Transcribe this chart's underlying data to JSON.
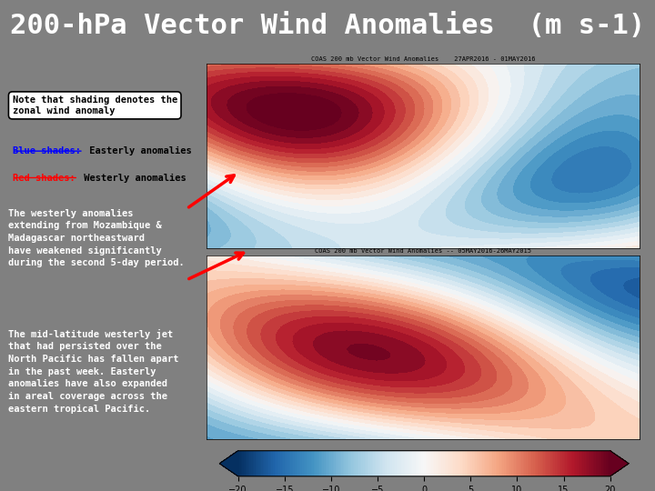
{
  "title": "200-hPa Vector Wind Anomalies  (m s-1)",
  "title_fontsize": 22,
  "title_color": "white",
  "bg_color": "#808080",
  "header_bg": "#707070",
  "note_box_text": "Note that shading denotes the\nzonal wind anomaly",
  "blue_label": "Blue shades:",
  "blue_text": " Easterly anomalies",
  "red_label": "Red shades:",
  "red_text": " Westerly anomalies",
  "para1": "The westerly anomalies\nextending from Mozambique &\nMadagascar northeastward\nhave weakened significantly\nduring the second 5-day period.",
  "para2": "The mid-latitude westerly jet\nthat had persisted over the\nNorth Pacific has fallen apart\nin the past week. Easterly\nanomalies have also expanded\nin areal coverage across the\neastern tropical Pacific.",
  "font_family": "monospace"
}
